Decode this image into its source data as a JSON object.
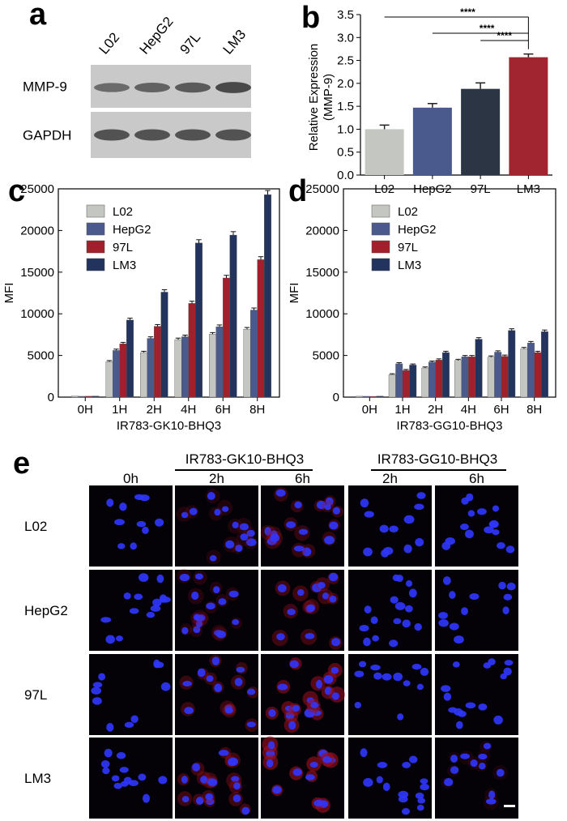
{
  "panel_letters": {
    "a": "a",
    "b": "b",
    "c": "c",
    "d": "d",
    "e": "e"
  },
  "colors": {
    "L02": "#c4c6c2",
    "HepG2": "#4a5a8c",
    "97L": "#a21f2c",
    "LM3": "#22335e",
    "b_97L": "#2c3544",
    "b_LM3": "#a02530",
    "nucleus": "#2f36ff",
    "cytoplasm": "#9a1020",
    "blot_bg": "#c9c9c9",
    "band": "#3e3e3e"
  },
  "western_blot": {
    "lanes": [
      "L02",
      "HepG2",
      "97L",
      "LM3"
    ],
    "rows": [
      {
        "label": "MMP-9",
        "intensity": [
          0.55,
          0.65,
          0.75,
          0.95
        ]
      },
      {
        "label": "GAPDH",
        "intensity": [
          0.85,
          0.85,
          0.85,
          0.85
        ]
      }
    ]
  },
  "chart_data": [
    {
      "id": "b",
      "type": "bar",
      "title": "",
      "xlabel": "",
      "ylabel": "Relative Expression",
      "ylabel2": "(MMP-9)",
      "categories": [
        "L02",
        "HepG2",
        "97L",
        "LM3"
      ],
      "values": [
        1.0,
        1.47,
        1.88,
        2.57
      ],
      "errors": [
        0.09,
        0.09,
        0.13,
        0.07
      ],
      "ylim": [
        0,
        3.5
      ],
      "yticks": [
        "0.0",
        "0.5",
        "1.0",
        "1.5",
        "2.0",
        "2.5",
        "3.0",
        "3.5"
      ],
      "significance": [
        {
          "from": "L02",
          "to": "LM3",
          "label": "****"
        },
        {
          "from": "HepG2",
          "to": "LM3",
          "label": "****"
        },
        {
          "from": "97L",
          "to": "LM3",
          "label": "****"
        }
      ]
    },
    {
      "id": "c",
      "type": "bar",
      "xlabel": "IR783-GK10-BHQ3",
      "ylabel": "MFI",
      "categories": [
        "0H",
        "1H",
        "2H",
        "4H",
        "6H",
        "8H"
      ],
      "ylim": [
        0,
        25000
      ],
      "yticks": [
        "0",
        "5000",
        "10000",
        "15000",
        "20000",
        "25000"
      ],
      "legend": "top-left",
      "series": [
        {
          "name": "L02",
          "values": [
            120,
            4250,
            5350,
            6900,
            7550,
            8150
          ]
        },
        {
          "name": "HepG2",
          "values": [
            100,
            5600,
            7050,
            7250,
            8450,
            10450
          ]
        },
        {
          "name": "97L",
          "values": [
            110,
            6400,
            8500,
            11250,
            14300,
            16500
          ]
        },
        {
          "name": "LM3",
          "values": [
            130,
            9250,
            12600,
            18500,
            19450,
            24300
          ]
        }
      ]
    },
    {
      "id": "d",
      "type": "bar",
      "xlabel": "IR783-GG10-BHQ3",
      "ylabel": "MFI",
      "categories": [
        "0H",
        "1H",
        "2H",
        "4H",
        "6H",
        "8H"
      ],
      "ylim": [
        0,
        25000
      ],
      "yticks": [
        "0",
        "5000",
        "10000",
        "15000",
        "20000",
        "25000"
      ],
      "legend": "top-left",
      "series": [
        {
          "name": "L02",
          "values": [
            110,
            2700,
            3500,
            4400,
            4800,
            5800
          ]
        },
        {
          "name": "HepG2",
          "values": [
            100,
            4000,
            4200,
            4850,
            5400,
            6500
          ]
        },
        {
          "name": "97L",
          "values": [
            90,
            3200,
            4450,
            4850,
            4900,
            5350
          ]
        },
        {
          "name": "LM3",
          "values": [
            120,
            3850,
            5350,
            6950,
            8000,
            7850
          ]
        }
      ]
    }
  ],
  "microscopy": {
    "group_labels": [
      "IR783-GK10-BHQ3",
      "IR783-GG10-BHQ3"
    ],
    "columns": [
      "0h",
      "2h",
      "6h",
      "2h",
      "6h"
    ],
    "rows": [
      "L02",
      "HepG2",
      "97L",
      "LM3"
    ],
    "red_signal": [
      [
        0.05,
        0.25,
        0.45,
        0.1,
        0.12
      ],
      [
        0.05,
        0.3,
        0.55,
        0.08,
        0.1
      ],
      [
        0.05,
        0.5,
        0.8,
        0.1,
        0.15
      ],
      [
        0.05,
        0.55,
        0.9,
        0.12,
        0.18
      ]
    ],
    "scale_bar": true
  }
}
